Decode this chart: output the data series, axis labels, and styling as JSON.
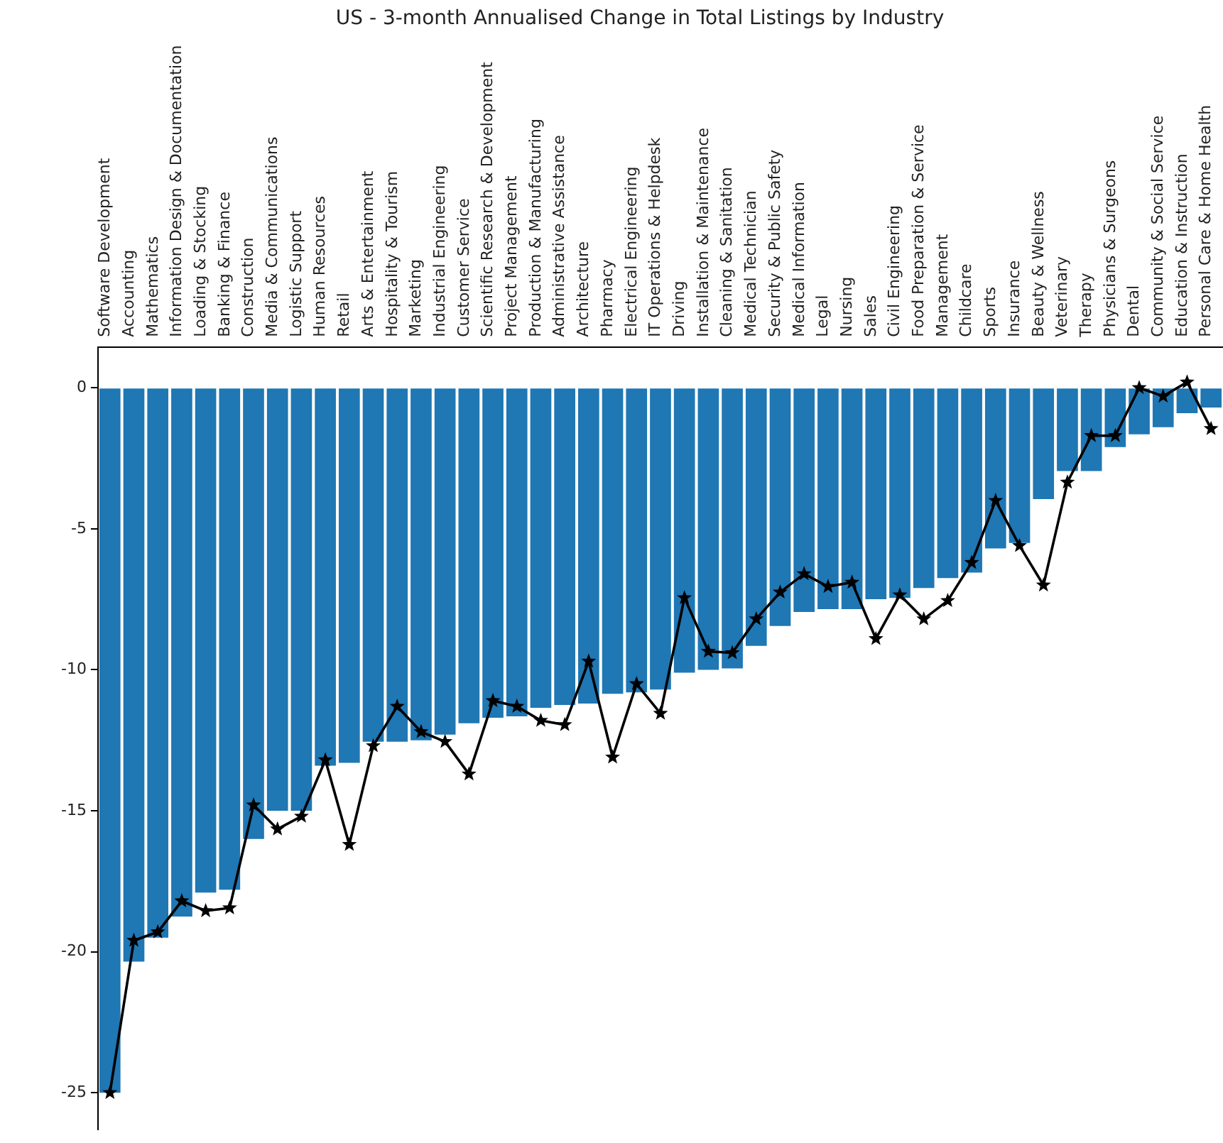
{
  "chart_data": {
    "type": "bar",
    "title": "US - 3-month Annualised Change in Total Listings by Industry",
    "categories": [
      "Software Development",
      "Accounting",
      "Mathematics",
      "Information Design & Documentation",
      "Loading & Stocking",
      "Banking & Finance",
      "Construction",
      "Media & Communications",
      "Logistic Support",
      "Human Resources",
      "Retail",
      "Arts & Entertainment",
      "Hospitality & Tourism",
      "Marketing",
      "Industrial Engineering",
      "Customer Service",
      "Scientific Research & Development",
      "Project Management",
      "Production & Manufacturing",
      "Administrative Assistance",
      "Architecture",
      "Pharmacy",
      "Electrical Engineering",
      "IT Operations & Helpdesk",
      "Driving",
      "Installation & Maintenance",
      "Cleaning & Sanitation",
      "Medical Technician",
      "Security & Public Safety",
      "Medical Information",
      "Legal",
      "Nursing",
      "Sales",
      "Civil Engineering",
      "Food Preparation & Service",
      "Management",
      "Childcare",
      "Sports",
      "Insurance",
      "Beauty & Wellness",
      "Veterinary",
      "Therapy",
      "Physicians & Surgeons",
      "Dental",
      "Community & Social Service",
      "Education & Instruction",
      "Personal Care & Home Health"
    ],
    "series": [
      {
        "color": "#1f77b4",
        "values": [
          -25.0,
          -20.35,
          -19.5,
          -18.75,
          -17.9,
          -17.8,
          -16.0,
          -15.0,
          -15.0,
          -13.4,
          -13.3,
          -12.55,
          -12.55,
          -12.5,
          -12.3,
          -11.9,
          -11.7,
          -11.65,
          -11.35,
          -11.25,
          -11.2,
          -10.85,
          -10.8,
          -10.7,
          -10.1,
          -10.0,
          -9.95,
          -9.15,
          -8.45,
          -7.95,
          -7.85,
          -7.85,
          -7.5,
          -7.45,
          -7.1,
          -6.75,
          -6.55,
          -5.7,
          -5.5,
          -3.95,
          -2.95,
          -2.95,
          -2.1,
          -1.65,
          -1.4,
          -0.9,
          -0.7
        ]
      },
      {
        "type": "line",
        "color": "#000000",
        "marker": "star",
        "line_style": "solid",
        "values": [
          -25.0,
          -19.6,
          -19.3,
          -18.2,
          -18.55,
          -18.45,
          -14.8,
          -15.65,
          -15.2,
          -13.2,
          -16.2,
          -12.7,
          -11.3,
          -12.2,
          -12.55,
          -13.7,
          -11.1,
          -11.3,
          -11.8,
          -11.95,
          -9.7,
          -13.1,
          -10.5,
          -11.55,
          -7.45,
          -9.35,
          -9.4,
          -8.2,
          -7.25,
          -6.6,
          -7.05,
          -6.9,
          -8.9,
          -7.35,
          -8.2,
          -7.55,
          -6.2,
          -4.0,
          -5.6,
          -7.0,
          -3.35,
          -1.7,
          -1.7,
          0.0,
          -0.3,
          0.2,
          -1.45
        ]
      }
    ],
    "ylim": [
      -26.3,
      1.45
    ],
    "yticks": [
      -25,
      -20,
      -15,
      -10,
      -5,
      0
    ],
    "grid": false,
    "legend": false
  }
}
